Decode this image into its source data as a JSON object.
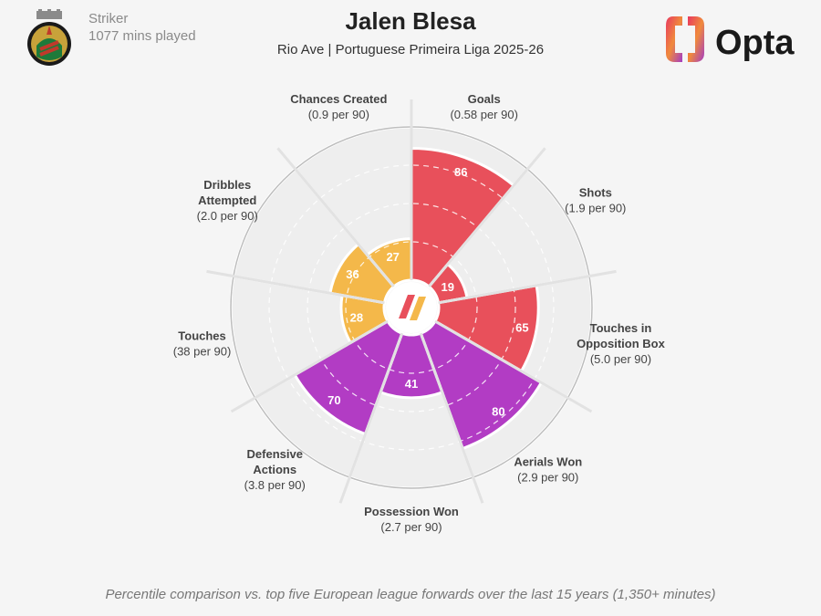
{
  "header": {
    "position": "Striker",
    "minutes": "1077 mins played",
    "title": "Jalen Blesa",
    "subtitle": "Rio Ave | Portuguese Primeira Liga 2025-26",
    "brand": "Opta"
  },
  "footnote": "Percentile comparison vs. top five European league forwards over the last 15 years (1,350+ minutes)",
  "colors": {
    "attacking": "#e8505b",
    "possession": "#f4b84a",
    "defending": "#b23cc4",
    "background": "#f5f5f5",
    "slice_bg": "#eeeeee"
  },
  "chart_data": {
    "type": "polar-bar",
    "title": "Jalen Blesa",
    "subtitle": "Rio Ave | Portuguese Primeira Liga 2025-26",
    "rlim": [
      0,
      100
    ],
    "categories": [
      {
        "name": "Goals",
        "lines": [
          "Goals",
          "(0.58 per 90)"
        ],
        "value": 86,
        "group": "attacking"
      },
      {
        "name": "Shots",
        "lines": [
          "Shots",
          "(1.9 per 90)"
        ],
        "value": 19,
        "group": "attacking"
      },
      {
        "name": "Touches in Opposition Box",
        "lines": [
          "Touches in",
          "Opposition Box",
          "(5.0 per 90)"
        ],
        "value": 65,
        "group": "attacking"
      },
      {
        "name": "Aerials Won",
        "lines": [
          "Aerials Won",
          "(2.9 per 90)"
        ],
        "value": 80,
        "group": "defending"
      },
      {
        "name": "Possession Won",
        "lines": [
          "Possession Won",
          "(2.7 per 90)"
        ],
        "value": 41,
        "group": "defending"
      },
      {
        "name": "Defensive Actions",
        "lines": [
          "Defensive",
          "Actions",
          "(3.8 per 90)"
        ],
        "value": 70,
        "group": "defending"
      },
      {
        "name": "Touches",
        "lines": [
          "Touches",
          "(38 per 90)"
        ],
        "value": 28,
        "group": "possession"
      },
      {
        "name": "Dribbles Attempted",
        "lines": [
          "Dribbles",
          "Attempted",
          "(2.0 per 90)"
        ],
        "value": 36,
        "group": "possession"
      },
      {
        "name": "Chances Created",
        "lines": [
          "Chances Created",
          "(0.9 per 90)"
        ],
        "value": 27,
        "group": "possession"
      }
    ]
  }
}
